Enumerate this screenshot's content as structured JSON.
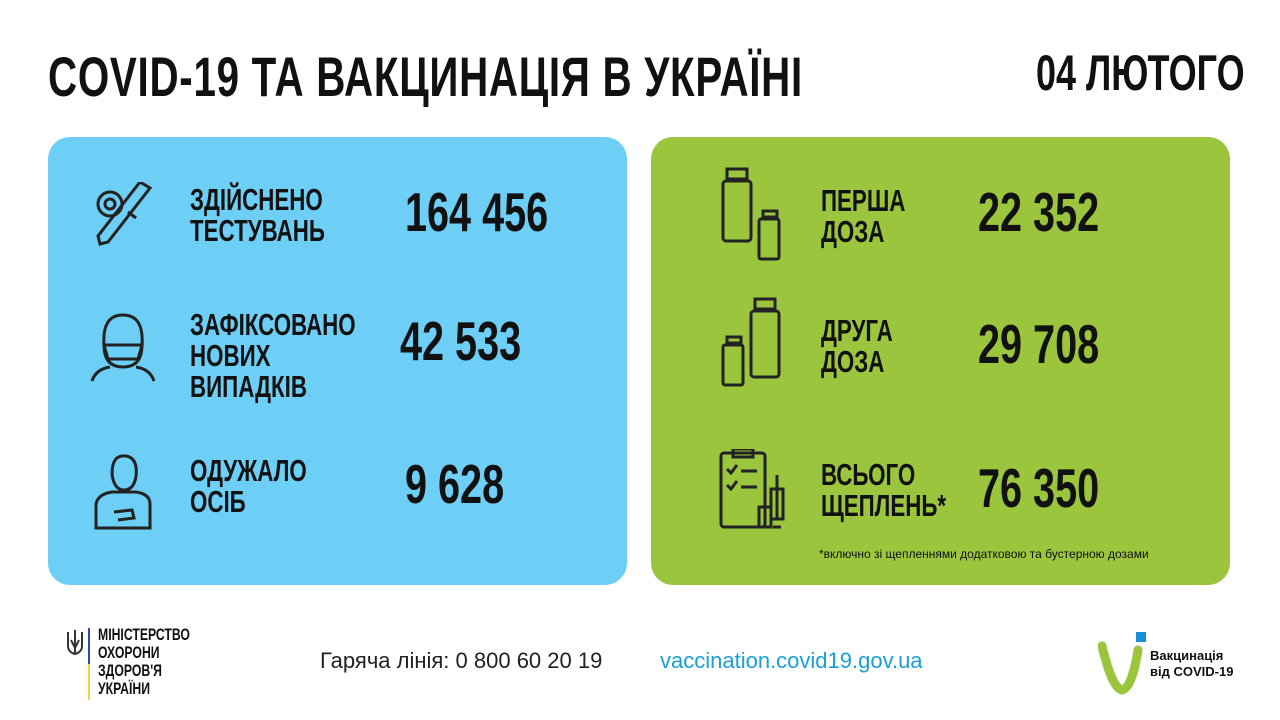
{
  "header": {
    "title": "COVID-19 ТА ВАКЦИНАЦІЯ В УКРАЇНІ",
    "date": "04 ЛЮТОГО"
  },
  "left_panel": {
    "color": "#6dcff6",
    "stats": [
      {
        "icon": "test-tube-virus-icon",
        "label": [
          "ЗДІЙСНЕНО",
          "ТЕСТУВАНЬ"
        ],
        "value": "164 456"
      },
      {
        "icon": "masked-person-icon",
        "label": [
          "ЗАФІКСОВАНО",
          "НОВИХ",
          "ВИПАДКІВ"
        ],
        "value": "42 533"
      },
      {
        "icon": "recovered-person-icon",
        "label": [
          "ОДУЖАЛО",
          "ОСІБ"
        ],
        "value": "9 628"
      }
    ]
  },
  "right_panel": {
    "color": "#9bc53d",
    "stats": [
      {
        "icon": "vaccine-vials-icon",
        "label": [
          "ПЕРША",
          "ДОЗА"
        ],
        "value": "22 352"
      },
      {
        "icon": "vaccine-vials-icon",
        "label": [
          "ДРУГА",
          "ДОЗА"
        ],
        "value": "29 708"
      },
      {
        "icon": "clipboard-syringe-icon",
        "label": [
          "ВСЬОГО",
          "ЩЕПЛЕНЬ*"
        ],
        "value": "76 350"
      }
    ],
    "footnote": "*включно зі щепленнями додатковою та бустерною дозами"
  },
  "footer": {
    "ministry": [
      "МІНІСТЕРСТВО",
      "ОХОРОНИ",
      "ЗДОРОВ'Я",
      "УКРАЇНИ"
    ],
    "hotline": "Гаряча лінія: 0 800 60 20 19",
    "website": "vaccination.covid19.gov.ua",
    "vaccination_logo": [
      "Вакцинація",
      "від COVID-19"
    ]
  }
}
